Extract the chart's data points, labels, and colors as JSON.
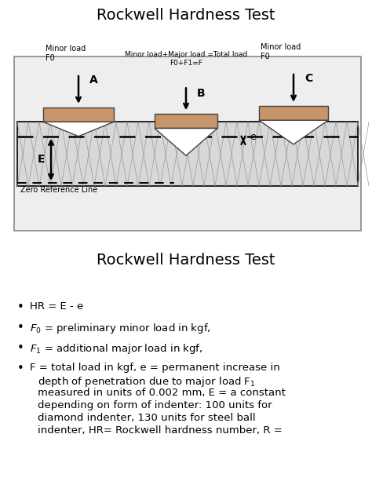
{
  "title1": "Rockwell Hardness Test",
  "title2": "Rockwell Hardness Test",
  "bg_color": "#ffffff",
  "diagram_bg": "#eeeeee",
  "indenter_fill": "#c8956a",
  "indenter_edge": "#444444",
  "material_fill": "#d8d8d8",
  "material_edge": "#222222",
  "hatch_color": "#aaaaaa",
  "minor_load_A": "Minor load\nF0",
  "minor_load_C": "Minor load\nF0",
  "total_load_B": "Minor load+Major load =Total load\nF0+F1=F",
  "label_A": "A",
  "label_B": "B",
  "label_C": "C",
  "label_E": "E",
  "label_e": "e",
  "zero_ref": "Zero Reference Line",
  "bullet1": "HR = E - e",
  "bullet2_pre": "F",
  "bullet2_sub": "0",
  "bullet2_post": " = preliminary minor load in kgf,",
  "bullet3_pre": "F",
  "bullet3_sub": "1",
  "bullet3_post": " = additional major load in kgf,",
  "bullet4_line1": "F = total load in kgf, e = permanent increase in",
  "bullet4_line2": "depth of penetration due to major load F",
  "bullet4_line2_sub": "1",
  "bullet4_line3": "measured in units of 0.002 mm, E = a constant",
  "bullet4_line4": "depending on form of indenter: 100 units for",
  "bullet4_line5": "diamond indenter, 130 units for steel ball",
  "bullet4_line6": "indenter, HR= Rockwell hardness number, R ="
}
